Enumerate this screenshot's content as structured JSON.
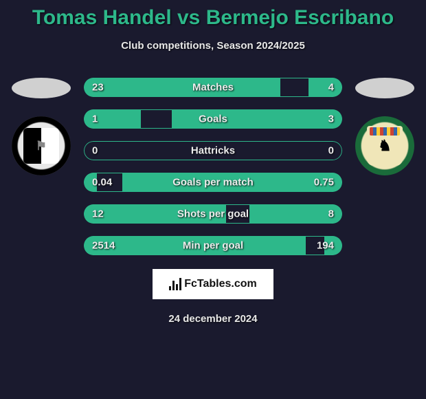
{
  "title": {
    "player1": "Tomas Handel",
    "vs": "vs",
    "player2": "Bermejo Escribano"
  },
  "subtitle": "Club competitions, Season 2024/2025",
  "date": "24 december 2024",
  "watermark": "FcTables.com",
  "colors": {
    "bg": "#1a1a2e",
    "accent": "#2db88a",
    "text": "#ececec"
  },
  "player1": {
    "club": "Vitoria"
  },
  "player2": {
    "club": "SCF"
  },
  "stats": [
    {
      "label": "Matches",
      "left_val": "23",
      "right_val": "4",
      "left_pct": 76,
      "right_pct": 13
    },
    {
      "label": "Goals",
      "left_val": "1",
      "right_val": "3",
      "left_pct": 22,
      "right_pct": 66
    },
    {
      "label": "Hattricks",
      "left_val": "0",
      "right_val": "0",
      "left_pct": 0,
      "right_pct": 0
    },
    {
      "label": "Goals per match",
      "left_val": "0.04",
      "right_val": "0.75",
      "left_pct": 5,
      "right_pct": 85
    },
    {
      "label": "Shots per goal",
      "left_val": "12",
      "right_val": "8",
      "left_pct": 55,
      "right_pct": 36
    },
    {
      "label": "Min per goal",
      "left_val": "2514",
      "right_val": "194",
      "left_pct": 86,
      "right_pct": 7
    }
  ]
}
